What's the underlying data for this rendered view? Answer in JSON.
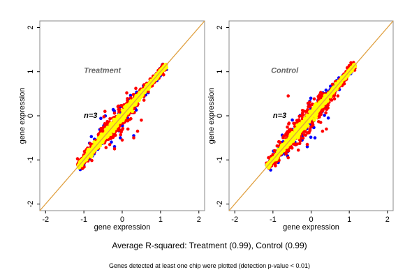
{
  "colors": {
    "background": "#ffffff",
    "frame": "#888888",
    "diagonal": "#e0a040",
    "points_blue": "#0000ff",
    "points_red": "#ff0000",
    "points_yellow": "#ffff00",
    "title_gray": "#666666"
  },
  "captions": {
    "main": "Average R-squared: Treatment (0.99), Control (0.99)",
    "sub": "Genes detected at least one chip were plotted (detection p-value < 0.01)"
  },
  "chart_data": [
    {
      "type": "scatter",
      "title": "Treatment",
      "annotation": "n=3",
      "xlabel": "gene expression",
      "ylabel": "gene expression",
      "xlim": [
        -2.15,
        2.15
      ],
      "ylim": [
        -2.15,
        2.15
      ],
      "xticks": [
        "-2",
        "-1",
        "0",
        "1",
        "2"
      ],
      "yticks": [
        "-2",
        "-1",
        "0",
        "1",
        "2"
      ],
      "reference_line": "y = x",
      "point_cloud": {
        "x_range": [
          -1.15,
          1.15
        ],
        "description": "Dense cloud along y=x; yellow core, red and blue scatter around it",
        "series": [
          {
            "name": "blue",
            "color": "#0000ff",
            "spread": 0.18
          },
          {
            "name": "red",
            "color": "#ff0000",
            "spread": 0.14
          },
          {
            "name": "yellow",
            "color": "#ffff00",
            "spread": 0.06
          }
        ],
        "outliers": [
          {
            "x": -0.2,
            "y": -0.7,
            "series": "blue"
          },
          {
            "x": -0.05,
            "y": -0.5,
            "series": "blue"
          },
          {
            "x": 0.3,
            "y": -0.45,
            "series": "blue"
          },
          {
            "x": 0.4,
            "y": -0.35,
            "series": "red"
          },
          {
            "x": -0.2,
            "y": -0.75,
            "series": "red"
          },
          {
            "x": 0.0,
            "y": -0.55,
            "series": "red"
          },
          {
            "x": 0.5,
            "y": -0.1,
            "series": "red"
          },
          {
            "x": 0.3,
            "y": -0.5,
            "series": "red"
          },
          {
            "x": -0.45,
            "y": 0.1,
            "series": "red"
          },
          {
            "x": 0.15,
            "y": -0.3,
            "series": "red"
          }
        ]
      }
    },
    {
      "type": "scatter",
      "title": "Control",
      "annotation": "n=3",
      "xlabel": "gene expression",
      "ylabel": "gene expression",
      "xlim": [
        -2.15,
        2.15
      ],
      "ylim": [
        -2.15,
        2.15
      ],
      "xticks": [
        "-2",
        "-1",
        "0",
        "1",
        "2"
      ],
      "yticks": [
        "-2",
        "-1",
        "0",
        "1",
        "2"
      ],
      "reference_line": "y = x",
      "point_cloud": {
        "x_range": [
          -1.15,
          1.15
        ],
        "description": "Dense cloud along y=x; yellow core, red and blue scatter around it",
        "series": [
          {
            "name": "blue",
            "color": "#0000ff",
            "spread": 0.2
          },
          {
            "name": "red",
            "color": "#ff0000",
            "spread": 0.16
          },
          {
            "name": "yellow",
            "color": "#ffff00",
            "spread": 0.06
          }
        ],
        "outliers": [
          {
            "x": -0.1,
            "y": -0.7,
            "series": "blue"
          },
          {
            "x": 0.1,
            "y": -0.5,
            "series": "blue"
          },
          {
            "x": 0.45,
            "y": -0.05,
            "series": "blue"
          },
          {
            "x": -0.6,
            "y": -0.95,
            "series": "red"
          },
          {
            "x": -0.1,
            "y": -0.65,
            "series": "red"
          },
          {
            "x": 0.3,
            "y": -0.35,
            "series": "red"
          },
          {
            "x": 0.4,
            "y": -0.3,
            "series": "red"
          },
          {
            "x": 0.6,
            "y": 0.45,
            "series": "red"
          },
          {
            "x": -0.6,
            "y": 0.45,
            "series": "red"
          },
          {
            "x": 0.7,
            "y": 0.45,
            "series": "red"
          },
          {
            "x": 0.25,
            "y": -0.15,
            "series": "red"
          }
        ]
      }
    }
  ]
}
